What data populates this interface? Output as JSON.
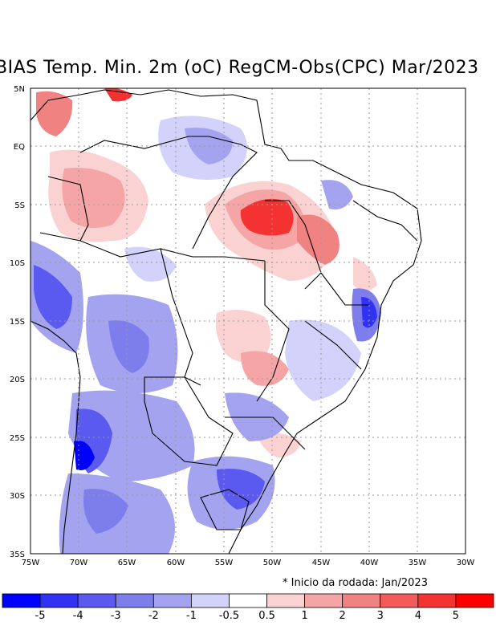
{
  "title": "BIAS Temp. Min. 2m (oC) RegCM-Obs(CPC) Mar/2023",
  "note": "* Inicio da rodada: Jan/2023",
  "lat_labels": [
    "5N",
    "EQ",
    "5S",
    "10S",
    "15S",
    "20S",
    "25S",
    "30S",
    "35S"
  ],
  "lon_labels": [
    "75W",
    "70W",
    "65W",
    "60W",
    "55W",
    "50W",
    "45W",
    "40W",
    "35W",
    "30W"
  ],
  "colorbar": {
    "colors": [
      "#0000ff",
      "#3232f5",
      "#5a5af0",
      "#7d7deb",
      "#a3a3f0",
      "#d2d2fa",
      "#ffffff",
      "#fad2d2",
      "#f5a5a5",
      "#f08282",
      "#f55a5a",
      "#f53232",
      "#ff0000"
    ],
    "labels": [
      "-5",
      "-4",
      "-3",
      "-2",
      "-1",
      "-0.5",
      "0.5",
      "1",
      "2",
      "3",
      "4",
      "5"
    ]
  }
}
